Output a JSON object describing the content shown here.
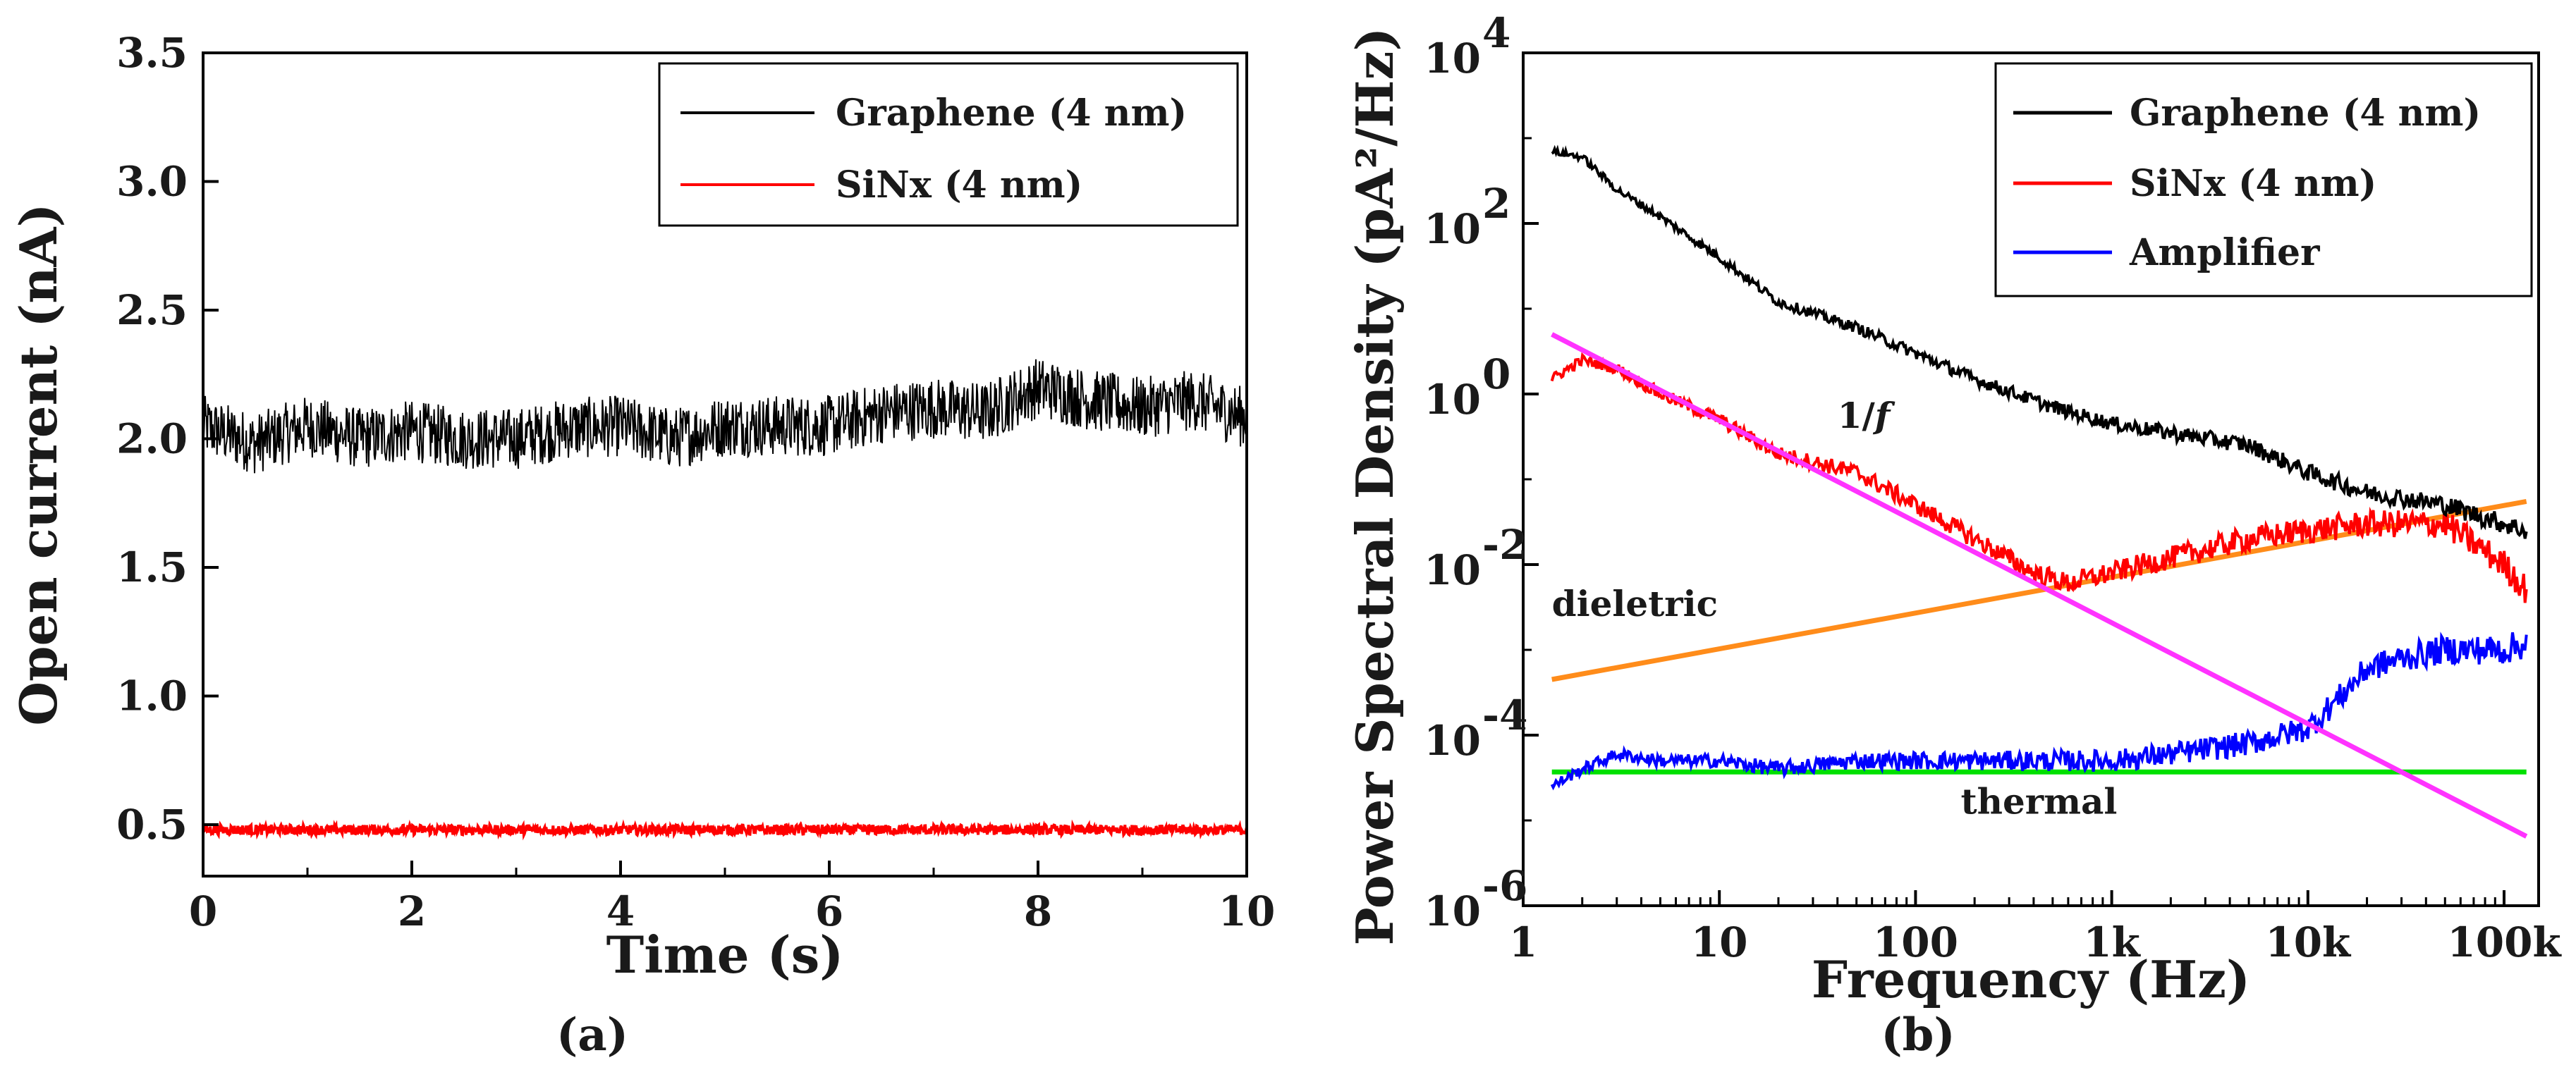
{
  "chart_data": [
    {
      "type": "line",
      "panel_label": "(a)",
      "xlabel": "Time (s)",
      "ylabel": "Open current (nA)",
      "xlim": [
        0,
        10
      ],
      "ylim": [
        0.3,
        3.5
      ],
      "x_ticks": [
        "0",
        "2",
        "4",
        "6",
        "8",
        "10"
      ],
      "y_ticks": [
        "0.5",
        "1.0",
        "1.5",
        "2.0",
        "2.5",
        "3.0",
        "3.5"
      ],
      "legend_position": "top-right",
      "series": [
        {
          "name": "Graphene (4 nm)",
          "color": "#000000",
          "x": [
            0,
            0.5,
            1,
            1.5,
            2,
            2.5,
            3,
            3.5,
            4,
            4.5,
            5,
            5.5,
            6,
            6.5,
            7,
            7.5,
            8,
            8.5,
            9,
            9.5,
            10
          ],
          "y": [
            2.05,
            1.98,
            2.05,
            2.0,
            2.03,
            2.0,
            2.0,
            2.04,
            2.05,
            2.0,
            2.05,
            2.05,
            2.05,
            2.1,
            2.12,
            2.1,
            2.2,
            2.15,
            2.12,
            2.15,
            2.08
          ]
        },
        {
          "name": "SiNx (4 nm)",
          "color": "#ff0000",
          "x": [
            0,
            1,
            2,
            3,
            4,
            5,
            6,
            7,
            8,
            9,
            10
          ],
          "y": [
            0.48,
            0.48,
            0.48,
            0.48,
            0.48,
            0.48,
            0.48,
            0.48,
            0.48,
            0.48,
            0.48
          ]
        }
      ]
    },
    {
      "type": "line",
      "panel_label": "(b)",
      "xlabel": "Frequency (Hz)",
      "ylabel": "Power Spectral Density (pA²/Hz)",
      "x_scale": "log",
      "y_scale": "log",
      "xlim": [
        1,
        150000
      ],
      "ylim": [
        1e-06,
        10000
      ],
      "x_ticks": [
        "1",
        "10",
        "100",
        "1k",
        "10k",
        "100k"
      ],
      "y_ticks": [
        {
          "base": "10",
          "exp": "-6"
        },
        {
          "base": "10",
          "exp": "-4"
        },
        {
          "base": "10",
          "exp": "-2"
        },
        {
          "base": "10",
          "exp": "0"
        },
        {
          "base": "10",
          "exp": "2"
        },
        {
          "base": "10",
          "exp": "4"
        }
      ],
      "legend_position": "top-right",
      "series": [
        {
          "name": "Graphene (4 nm)",
          "color": "#000000",
          "x": [
            1.4,
            2,
            3,
            5,
            10,
            20,
            50,
            100,
            200,
            500,
            1000,
            2000,
            5000,
            10000,
            20000,
            50000,
            100000,
            130000
          ],
          "y": [
            700,
            600,
            250,
            120,
            40,
            12,
            6,
            3,
            1.5,
            0.7,
            0.45,
            0.35,
            0.25,
            0.12,
            0.07,
            0.05,
            0.03,
            0.025
          ]
        },
        {
          "name": "SiNx (4 nm)",
          "color": "#ff0000",
          "x": [
            1.4,
            2,
            3,
            5,
            10,
            20,
            50,
            100,
            200,
            400,
            600,
            1000,
            2000,
            5000,
            10000,
            20000,
            50000,
            100000,
            130000
          ],
          "y": [
            1.5,
            2.5,
            2,
            1,
            0.5,
            0.2,
            0.12,
            0.05,
            0.02,
            0.008,
            0.006,
            0.008,
            0.012,
            0.02,
            0.025,
            0.03,
            0.03,
            0.01,
            0.005
          ]
        },
        {
          "name": "Amplifier",
          "color": "#0000ff",
          "x": [
            1.4,
            2,
            3,
            5,
            10,
            20,
            50,
            100,
            200,
            500,
            1000,
            2000,
            5000,
            10000,
            15000,
            20000,
            30000,
            50000,
            100000,
            130000
          ],
          "y": [
            2.5e-05,
            4e-05,
            6e-05,
            5e-05,
            5e-05,
            4e-05,
            5e-05,
            5e-05,
            5e-05,
            5e-05,
            5e-05,
            6e-05,
            8e-05,
            0.00012,
            0.0003,
            0.0006,
            0.0008,
            0.001,
            0.001,
            0.0012
          ]
        },
        {
          "name": "",
          "color": "#ff33ff",
          "x": [
            1.4,
            130000
          ],
          "y": [
            5,
            6.5e-06
          ]
        },
        {
          "name": "",
          "color": "#ff8c1a",
          "x": [
            1.4,
            130000
          ],
          "y": [
            0.00045,
            0.055
          ]
        },
        {
          "name": "",
          "color": "#00e000",
          "x": [
            1.4,
            130000
          ],
          "y": [
            3.7e-05,
            3.7e-05
          ]
        }
      ],
      "annotations": [
        {
          "text": "1/",
          "emph": "f",
          "x": 40,
          "y": 0.4
        },
        {
          "text": "dieletric",
          "x": 1.4,
          "y": 0.0025
        },
        {
          "text": "thermal",
          "x": 170,
          "y": 1.2e-05
        }
      ]
    }
  ]
}
